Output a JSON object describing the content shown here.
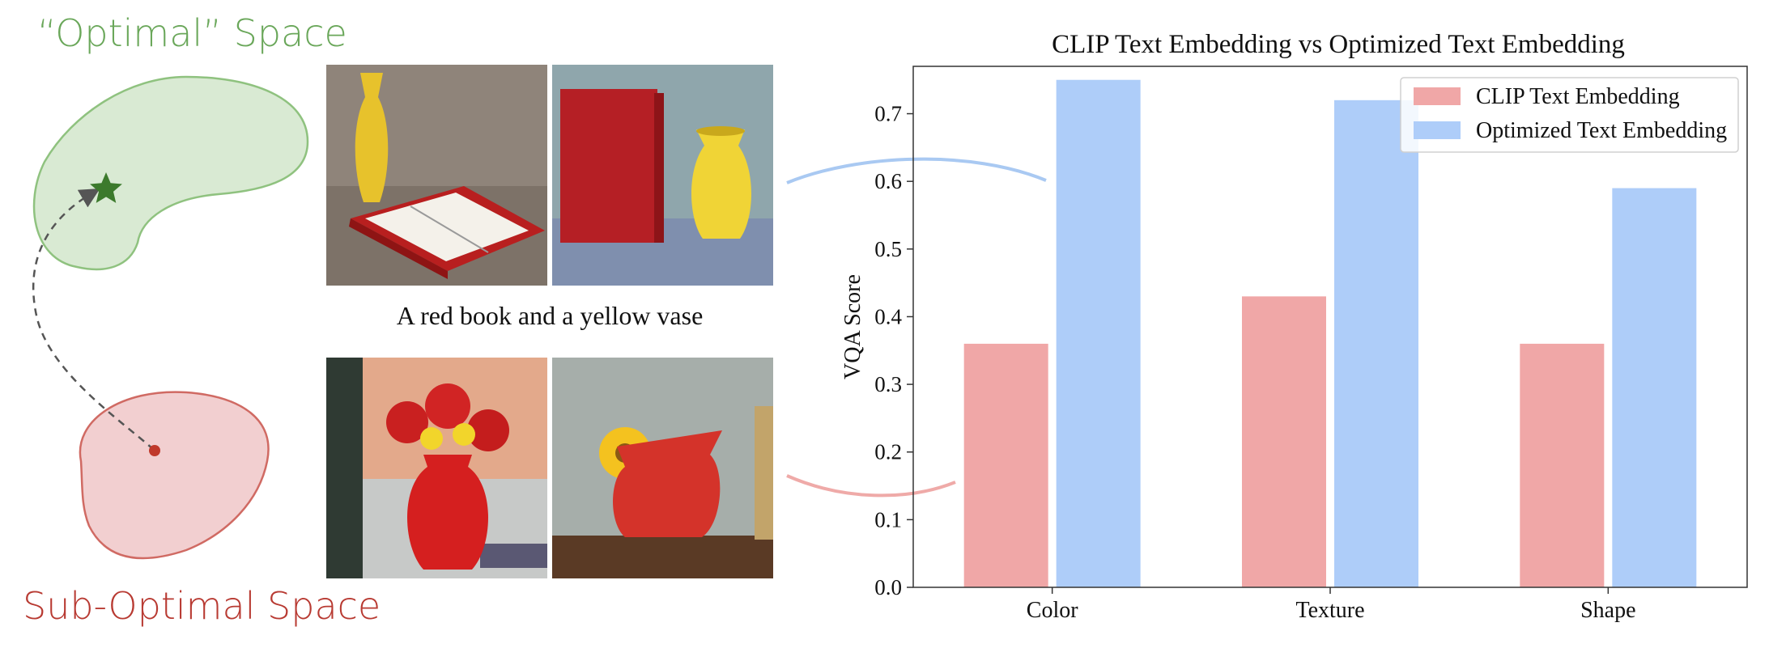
{
  "diagram": {
    "optimal_label": "“Optimal” Space",
    "suboptimal_label": "Sub-Optimal Space",
    "caption": "A red book and a yellow vase",
    "colors": {
      "optimal": "#6aa75a",
      "suboptimal": "#b83a32"
    }
  },
  "chart_data": {
    "type": "bar",
    "title": "CLIP Text Embedding vs Optimized Text Embedding",
    "xlabel": "",
    "ylabel": "VQA Score",
    "categories": [
      "Color",
      "Texture",
      "Shape"
    ],
    "series": [
      {
        "name": "CLIP Text Embedding",
        "values": [
          0.36,
          0.43,
          0.36
        ],
        "color": "#f0a7a7"
      },
      {
        "name": "Optimized Text Embedding",
        "values": [
          0.75,
          0.72,
          0.59
        ],
        "color": "#aecdf9"
      }
    ],
    "ylim": [
      0,
      0.77
    ],
    "yticks": [
      "0.0",
      "0.1",
      "0.2",
      "0.3",
      "0.4",
      "0.5",
      "0.6",
      "0.7"
    ],
    "legend": "top-right",
    "grid": false
  }
}
